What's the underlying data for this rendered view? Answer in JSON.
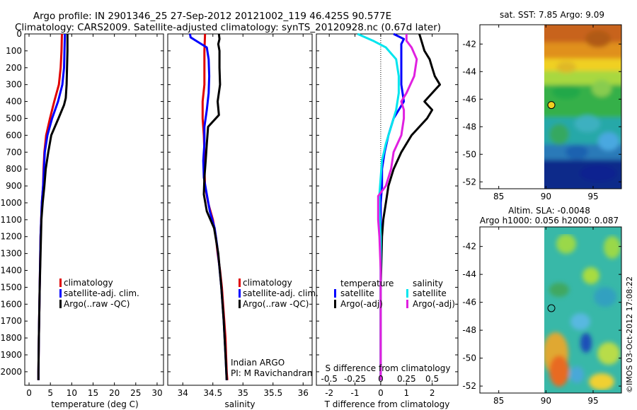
{
  "header": {
    "line1": "Argo profile: IN 2901346_25 27-Sep-2012 20121002_119 46.425S 90.577E",
    "line2": "Climatology: CARS2009. Satellite-adjusted climatology: synTS_20120928.nc (0.67d later)"
  },
  "colors": {
    "red": "#e00000",
    "blue": "#0000ff",
    "black": "#000000",
    "cyan": "#00e5ee",
    "magenta": "#e020e0"
  },
  "chart_data": [
    {
      "type": "line",
      "name": "temperature-panel",
      "xlabel": "temperature (deg C)",
      "xlim": [
        -1,
        31.5
      ],
      "ylim": [
        0,
        2080
      ],
      "xticks": [
        0,
        5,
        10,
        15,
        20,
        25,
        30
      ],
      "xtick_labels": [
        "0",
        "5",
        "10",
        "15",
        "20",
        "25",
        "30"
      ],
      "yticks": [
        0,
        100,
        200,
        300,
        400,
        500,
        600,
        700,
        800,
        900,
        1000,
        1100,
        1200,
        1300,
        1400,
        1500,
        1600,
        1700,
        1800,
        1900,
        2000
      ],
      "ytick_labels": [
        "0",
        "100",
        "200",
        "300",
        "400",
        "500",
        "600",
        "700",
        "800",
        "900",
        "1000",
        "1100",
        "1200",
        "1300",
        "1400",
        "1500",
        "1600",
        "1700",
        "1800",
        "1900",
        "2000"
      ],
      "legend": [
        "climatology",
        "satellite-adj. clim.",
        "Argo(..raw -QC)"
      ],
      "series": [
        {
          "name": "climatology",
          "color": "red",
          "depth": [
            0,
            100,
            200,
            300,
            400,
            500,
            600,
            700,
            800,
            900,
            1000,
            1200,
            1500,
            1800,
            2000,
            2050
          ],
          "values": [
            7.7,
            7.6,
            7.4,
            7.0,
            5.9,
            4.9,
            4.0,
            3.6,
            3.4,
            3.3,
            3.0,
            2.7,
            2.5,
            2.3,
            2.2,
            2.2
          ]
        },
        {
          "name": "satellite-adj. clim.",
          "color": "blue",
          "depth": [
            0,
            100,
            200,
            300,
            400,
            500,
            600,
            700,
            800,
            900,
            1000,
            1200,
            1500,
            1800,
            2000,
            2050
          ],
          "values": [
            8.4,
            8.3,
            8.2,
            7.8,
            6.8,
            5.4,
            4.3,
            3.7,
            3.5,
            3.3,
            3.0,
            2.7,
            2.5,
            2.3,
            2.2,
            2.2
          ]
        },
        {
          "name": "Argo(..raw -QC)",
          "color": "black",
          "depth": [
            0,
            50,
            100,
            200,
            300,
            380,
            420,
            500,
            600,
            700,
            800,
            900,
            1000,
            1100,
            1300,
            1500,
            1800,
            2000,
            2050
          ],
          "values": [
            9.0,
            9.0,
            9.0,
            8.9,
            8.8,
            8.6,
            8.2,
            6.9,
            5.2,
            4.5,
            3.9,
            3.6,
            3.2,
            2.9,
            2.7,
            2.5,
            2.3,
            2.2,
            2.2
          ]
        }
      ]
    },
    {
      "type": "line",
      "name": "salinity-panel",
      "xlabel": "salinity",
      "xlim": [
        33.75,
        36.15
      ],
      "ylim": [
        0,
        2080
      ],
      "xticks": [
        34,
        34.5,
        35,
        35.5,
        36
      ],
      "xtick_labels": [
        "34",
        "34.5",
        "35",
        "35.5",
        "36"
      ],
      "legend": [
        "climatology",
        "satellite-adj. clim.",
        "Argo(..raw -QC)"
      ],
      "annotation": [
        "Indian ARGO",
        "PI: M Ravichandran"
      ],
      "series": [
        {
          "name": "climatology",
          "color": "red",
          "depth": [
            0,
            100,
            200,
            300,
            400,
            500,
            600,
            700,
            800,
            900,
            1000,
            1100,
            1200,
            1300,
            1400,
            1500,
            1600,
            1700,
            1800,
            1900,
            2000,
            2050
          ],
          "values": [
            34.37,
            34.36,
            34.36,
            34.36,
            34.33,
            34.33,
            34.35,
            34.36,
            34.36,
            34.37,
            34.42,
            34.5,
            34.55,
            34.58,
            34.62,
            34.65,
            34.67,
            34.69,
            34.71,
            34.72,
            34.73,
            34.74
          ]
        },
        {
          "name": "satellite-adj. clim.",
          "color": "blue",
          "depth": [
            0,
            20,
            40,
            80,
            150,
            250,
            350,
            450,
            550,
            650,
            750,
            850,
            950,
            1050,
            1150,
            1250,
            1350,
            1500,
            1700,
            1900,
            2050
          ],
          "values": [
            34.12,
            34.13,
            34.22,
            34.4,
            34.43,
            34.44,
            34.43,
            34.4,
            34.36,
            34.36,
            34.34,
            34.35,
            34.4,
            34.45,
            34.53,
            34.57,
            34.6,
            34.64,
            34.68,
            34.71,
            34.73
          ]
        },
        {
          "name": "Argo(..raw -QC)",
          "color": "black",
          "depth": [
            0,
            30,
            60,
            100,
            200,
            300,
            400,
            480,
            550,
            650,
            750,
            850,
            950,
            1050,
            1150,
            1300,
            1500,
            1700,
            1900,
            2050
          ],
          "values": [
            34.6,
            34.61,
            34.59,
            34.61,
            34.61,
            34.62,
            34.58,
            34.6,
            34.42,
            34.4,
            34.38,
            34.36,
            34.35,
            34.4,
            34.52,
            34.59,
            34.64,
            34.68,
            34.71,
            34.73
          ]
        }
      ]
    },
    {
      "type": "line",
      "name": "difference-panel",
      "xlabel": "T difference from climatology",
      "xlim": [
        -2.5,
        3.0
      ],
      "ylim": [
        0,
        2080
      ],
      "xticks": [
        -2,
        -1,
        0,
        1,
        2
      ],
      "xtick_labels": [
        "-2",
        "-1",
        "0",
        "1",
        "2"
      ],
      "top_axis_label": "S difference from climatology",
      "top_ticks": [
        -0.5,
        -0.25,
        0,
        0.25,
        0.5
      ],
      "top_tick_labels": [
        "-0.5",
        "-0.25",
        "0",
        "0.25",
        "0.5"
      ],
      "legend_temperature": {
        "title": "temperature",
        "items": [
          "satellite",
          "Argo(-adj)"
        ]
      },
      "legend_salinity": {
        "title": "salinity",
        "items": [
          "satellite",
          "Argo(-adj)"
        ]
      },
      "series": [
        {
          "name": "temperature satellite",
          "color": "blue",
          "depth": [
            0,
            30,
            60,
            100,
            150,
            200,
            300,
            400,
            500,
            600,
            700,
            800,
            900,
            1000,
            1200,
            1500,
            1800,
            2050
          ],
          "values": [
            0.5,
            0.9,
            0.8,
            0.8,
            0.8,
            0.8,
            0.8,
            0.9,
            0.5,
            0.3,
            0.15,
            0.05,
            0.05,
            0.0,
            0.0,
            0.0,
            0.0,
            0.0
          ]
        },
        {
          "name": "temperature Argo(-adj)",
          "color": "black",
          "depth": [
            0,
            50,
            100,
            150,
            200,
            250,
            300,
            350,
            400,
            450,
            500,
            600,
            700,
            800,
            900,
            1000,
            1100,
            1200,
            1500,
            1800,
            2050
          ],
          "values": [
            1.5,
            1.6,
            1.7,
            1.9,
            2.0,
            2.1,
            2.3,
            2.0,
            1.7,
            2.0,
            1.8,
            1.2,
            0.8,
            0.5,
            0.3,
            0.2,
            0.1,
            0.05,
            0.0,
            0.0,
            0.0
          ]
        },
        {
          "name": "salinity satellite",
          "color": "cyan",
          "depth": [
            0,
            40,
            80,
            150,
            250,
            350,
            450,
            550,
            650,
            750,
            850,
            950,
            1050,
            1200,
            1500,
            1800,
            2050
          ],
          "values": [
            -0.9,
            -0.3,
            0.2,
            0.6,
            0.7,
            0.7,
            0.6,
            0.4,
            0.2,
            0.05,
            0.0,
            -0.05,
            -0.05,
            0.0,
            0.0,
            0.0,
            0.0
          ]
        },
        {
          "name": "salinity Argo(-adj)",
          "color": "magenta",
          "depth": [
            0,
            40,
            80,
            150,
            250,
            350,
            400,
            450,
            500,
            600,
            700,
            800,
            900,
            960,
            1000,
            1100,
            1200,
            1400,
            1600,
            1800,
            2050
          ],
          "values": [
            1.0,
            1.0,
            1.2,
            1.4,
            1.3,
            1.0,
            0.8,
            0.9,
            0.9,
            0.8,
            0.5,
            0.4,
            0.2,
            -0.1,
            -0.1,
            -0.1,
            -0.05,
            0.0,
            0.0,
            0.0,
            0.0
          ]
        }
      ]
    },
    {
      "type": "heatmap",
      "name": "sst-map",
      "title": "sat. SST: 7.85  Argo: 9.09",
      "xticks": [
        85,
        90,
        95
      ],
      "xtick_labels": [
        "85",
        "90",
        "95"
      ],
      "yticks": [
        -42,
        -44,
        -46,
        -48,
        -50,
        -52
      ],
      "ytick_labels": [
        "-42",
        "-44",
        "-46",
        "-48",
        "-50",
        "-52"
      ],
      "xlim": [
        83,
        98
      ],
      "ylim": [
        -52.5,
        -40.6
      ],
      "data_lon_min": 90,
      "marker": {
        "lon": 90.577,
        "lat": -46.425
      }
    },
    {
      "type": "heatmap",
      "name": "sla-map",
      "title_line1": "Altim. SLA: -0.0048",
      "title_line2": "Argo h1000: 0.056 h2000: 0.087",
      "xticks": [
        85,
        90,
        95
      ],
      "xtick_labels": [
        "85",
        "90",
        "95"
      ],
      "yticks": [
        -42,
        -44,
        -46,
        -48,
        -50,
        -52
      ],
      "ytick_labels": [
        "-42",
        "-44",
        "-46",
        "-48",
        "-50",
        "-52"
      ],
      "xlim": [
        83,
        98
      ],
      "ylim": [
        -52.5,
        -40.6
      ],
      "data_lon_min": 90,
      "marker": {
        "lon": 90.577,
        "lat": -46.425
      }
    }
  ],
  "footer": {
    "stamp": "©IMOS 03-Oct-2012 17:08:22"
  }
}
